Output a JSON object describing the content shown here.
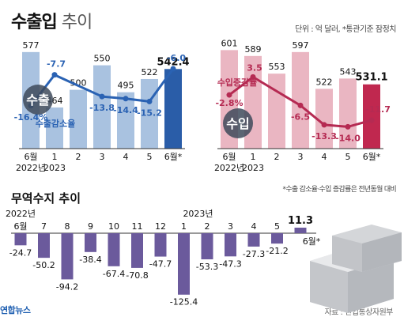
{
  "header": {
    "title_bold": "수출입",
    "title_light": "추이",
    "unit_note": "단위 : 억 달러, *통관기준 잠정치",
    "footnote": "*수출 감소율·수입 증감률은 전년동월 대비",
    "source": "자료 : 산업통상자원부",
    "logo": "연합뉴스"
  },
  "colors": {
    "export_bar": "#a9c2e0",
    "export_bar_last": "#2a5da8",
    "export_line": "#2a62b3",
    "import_bar": "#eab6c2",
    "import_bar_last": "#c0284f",
    "import_line": "#b52a52",
    "trade_bar": "#6b5a9c",
    "axis": "#333333"
  },
  "chart_data": [
    {
      "type": "bar",
      "name_badge": "수출",
      "categories": [
        "6월",
        "1",
        "2",
        "3",
        "4",
        "5",
        "6월*"
      ],
      "year_labels": [
        "2022년",
        "2023"
      ],
      "values": [
        577,
        464,
        500,
        550,
        495,
        522,
        542.4
      ],
      "value_labels": [
        "577",
        "464",
        "500",
        "550",
        "495",
        "522",
        "542.4"
      ],
      "line": {
        "name": "수출감소율",
        "values": [
          -16.4,
          -7.7,
          -13.8,
          -14.4,
          -15.2,
          -6.0
        ],
        "labels": [
          "-16.4%",
          "-7.7",
          "-13.8",
          "-14.4",
          "-15.2",
          "-6.0"
        ]
      }
    },
    {
      "type": "bar",
      "name_badge": "수입",
      "categories": [
        "6월",
        "1",
        "2",
        "3",
        "4",
        "5",
        "6월*"
      ],
      "year_labels": [
        "2022년",
        "2023"
      ],
      "values": [
        601,
        589,
        553,
        597,
        522,
        543,
        531.1
      ],
      "value_labels": [
        "601",
        "589",
        "553",
        "597",
        "522",
        "543",
        "531.1"
      ],
      "line": {
        "name": "수입증감률",
        "values": [
          -2.8,
          3.5,
          -6.5,
          -13.3,
          -14.0,
          -11.7
        ],
        "labels": [
          "-2.8%",
          "3.5",
          "-6.5",
          "-13.3",
          "-14.0",
          "-11.7"
        ]
      }
    },
    {
      "type": "bar",
      "title": "무역수지 추이",
      "year_labels": [
        "2022년",
        "2023년"
      ],
      "categories": [
        "6월",
        "7",
        "8",
        "9",
        "10",
        "11",
        "12",
        "1",
        "2",
        "3",
        "4",
        "5",
        "6월*"
      ],
      "values": [
        -24.7,
        -50.2,
        -94.2,
        -38.4,
        -67.4,
        -70.8,
        -47.7,
        -125.4,
        -53.3,
        -47.3,
        -27.3,
        -21.2,
        11.3
      ],
      "value_labels": [
        "-24.7",
        "-50.2",
        "-94.2",
        "-38.4",
        "-67.4",
        "-70.8",
        "-47.7",
        "-125.4",
        "-53.3",
        "-47.3",
        "-27.3",
        "-21.2",
        "11.3"
      ]
    }
  ]
}
